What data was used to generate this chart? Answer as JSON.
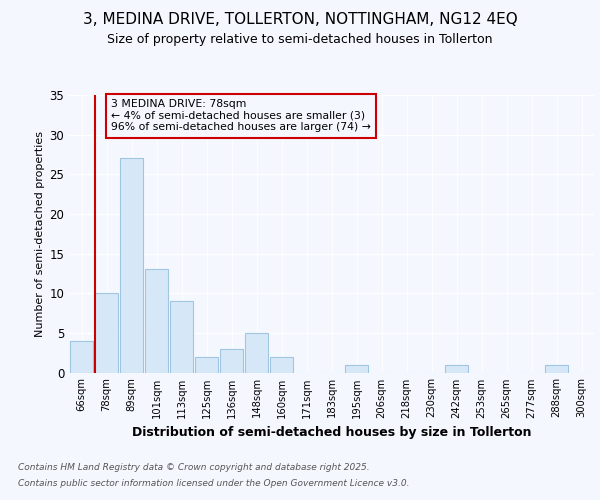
{
  "title_line1": "3, MEDINA DRIVE, TOLLERTON, NOTTINGHAM, NG12 4EQ",
  "title_line2": "Size of property relative to semi-detached houses in Tollerton",
  "xlabel": "Distribution of semi-detached houses by size in Tollerton",
  "ylabel": "Number of semi-detached properties",
  "categories": [
    "66sqm",
    "78sqm",
    "89sqm",
    "101sqm",
    "113sqm",
    "125sqm",
    "136sqm",
    "148sqm",
    "160sqm",
    "171sqm",
    "183sqm",
    "195sqm",
    "206sqm",
    "218sqm",
    "230sqm",
    "242sqm",
    "253sqm",
    "265sqm",
    "277sqm",
    "288sqm",
    "300sqm"
  ],
  "values": [
    4,
    10,
    27,
    13,
    9,
    2,
    3,
    5,
    2,
    0,
    0,
    1,
    0,
    0,
    0,
    1,
    0,
    0,
    0,
    1,
    0
  ],
  "bar_color": "#d6e8f7",
  "bar_edge_color": "#9fc5e0",
  "highlight_bar_index": 1,
  "highlight_color": "#cc0000",
  "annotation_title": "3 MEDINA DRIVE: 78sqm",
  "annotation_line2": "← 4% of semi-detached houses are smaller (3)",
  "annotation_line3": "96% of semi-detached houses are larger (74) →",
  "annotation_box_color": "#cc0000",
  "ylim": [
    0,
    35
  ],
  "yticks": [
    0,
    5,
    10,
    15,
    20,
    25,
    30,
    35
  ],
  "footer_line1": "Contains HM Land Registry data © Crown copyright and database right 2025.",
  "footer_line2": "Contains public sector information licensed under the Open Government Licence v3.0.",
  "bg_color": "#f5f7ff",
  "plot_bg_color": "#f5f7ff"
}
